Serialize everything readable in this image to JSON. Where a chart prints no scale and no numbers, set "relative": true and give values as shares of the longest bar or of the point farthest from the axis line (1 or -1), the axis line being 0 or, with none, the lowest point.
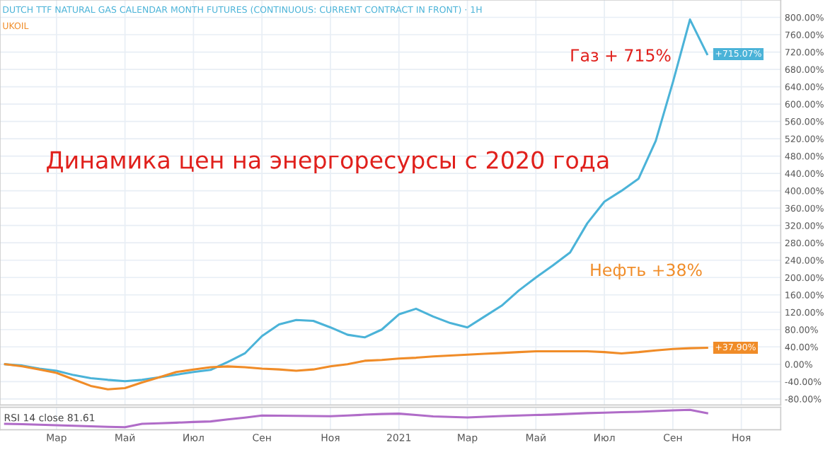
{
  "chart_data": [
    {
      "type": "line",
      "title": "Динамика цен на энергоресурсы с 2020 года",
      "annotations": [
        "Газ + 715%",
        "Нефть +38%"
      ],
      "categories": [
        null,
        null,
        null,
        null,
        null,
        null,
        null,
        null,
        null,
        null,
        null,
        null,
        null,
        null,
        null,
        null,
        null,
        null,
        null,
        null,
        null,
        null,
        null,
        null,
        null,
        null,
        null,
        null,
        null,
        null,
        null,
        null,
        null,
        null,
        null,
        null,
        null,
        null,
        null,
        null,
        null,
        null,
        null,
        null,
        null,
        null
      ],
      "series": [
        {
          "name": "DUTCH TTF NATURAL GAS CALENDAR MONTH FUTURES (CONTINUOUS: CURRENT CONTRACT IN FRONT) · 1H",
          "color": "#4bb3d8",
          "values": [
            0,
            -3,
            -10,
            -15,
            -25,
            -32,
            -36,
            -39,
            -36,
            -30,
            -24,
            -18,
            -13,
            5,
            25,
            65,
            92,
            102,
            100,
            85,
            68,
            62,
            80,
            115,
            128,
            110,
            95,
            85,
            110,
            135,
            170,
            200,
            228,
            258,
            325,
            375,
            400,
            428,
            515,
            650,
            795,
            715.07,
            null,
            null,
            null,
            null
          ],
          "value_labels": [
            null,
            null,
            null,
            null,
            null,
            null,
            null,
            null,
            null,
            null,
            null,
            null,
            null,
            null,
            null,
            null,
            null,
            null,
            null,
            null,
            null,
            null,
            null,
            null,
            null,
            null,
            null,
            null,
            null,
            null,
            null,
            null,
            null,
            null,
            null,
            null,
            null,
            null,
            null,
            null,
            null,
            "+715.07%",
            null,
            null,
            null,
            null
          ]
        },
        {
          "name": "UKOIL",
          "color": "#f08c28",
          "values": [
            0,
            -5,
            -12,
            -20,
            -35,
            -50,
            -58,
            -55,
            -42,
            -30,
            -18,
            -12,
            -7,
            -5,
            -7,
            -10,
            -12,
            -15,
            -12,
            -5,
            0,
            8,
            10,
            13,
            15,
            18,
            20,
            22,
            24,
            26,
            28,
            30,
            30,
            30,
            30,
            28,
            25,
            28,
            32,
            35,
            37,
            37.9,
            null,
            null,
            null,
            null
          ],
          "value_labels": [
            null,
            null,
            null,
            null,
            null,
            null,
            null,
            null,
            null,
            null,
            null,
            null,
            null,
            null,
            null,
            null,
            null,
            null,
            null,
            null,
            null,
            null,
            null,
            null,
            null,
            null,
            null,
            null,
            null,
            null,
            null,
            null,
            null,
            null,
            null,
            null,
            null,
            null,
            null,
            null,
            null,
            "+37.90%",
            null,
            null,
            null,
            null
          ]
        }
      ],
      "ylim": [
        -94,
        840
      ],
      "yticks": [
        {
          "value": -80,
          "label": "-80.00%"
        },
        {
          "value": -40,
          "label": "-40.00%"
        },
        {
          "value": 0,
          "label": "0.00%"
        },
        {
          "value": 40,
          "label": "40.00%"
        },
        {
          "value": 80,
          "label": "80.00%"
        },
        {
          "value": 120,
          "label": "120.00%"
        },
        {
          "value": 160,
          "label": "160.00%"
        },
        {
          "value": 200,
          "label": "200.00%"
        },
        {
          "value": 240,
          "label": "240.00%"
        },
        {
          "value": 280,
          "label": "280.00%"
        },
        {
          "value": 320,
          "label": "320.00%"
        },
        {
          "value": 360,
          "label": "360.00%"
        },
        {
          "value": 400,
          "label": "400.00%"
        },
        {
          "value": 440,
          "label": "440.00%"
        },
        {
          "value": 480,
          "label": "480.00%"
        },
        {
          "value": 520,
          "label": "520.00%"
        },
        {
          "value": 560,
          "label": "560.00%"
        },
        {
          "value": 600,
          "label": "600.00%"
        },
        {
          "value": 640,
          "label": "640.00%"
        },
        {
          "value": 680,
          "label": "680.00%"
        },
        {
          "value": 720,
          "label": "720.00%"
        },
        {
          "value": 760,
          "label": "760.00%"
        },
        {
          "value": 800,
          "label": "800.00%"
        }
      ],
      "grid": true,
      "tick_labels": "y",
      "line_style": "solid"
    },
    {
      "type": "line",
      "relative": true,
      "annotations": [
        "RSI 14 close 81.61"
      ],
      "categories": [
        null,
        null,
        null,
        "Мар",
        null,
        null,
        null,
        "Май",
        null,
        null,
        null,
        "Июл",
        null,
        null,
        null,
        "Сен",
        null,
        null,
        null,
        "Ноя",
        null,
        null,
        null,
        "2021",
        null,
        null,
        null,
        "Мар",
        null,
        null,
        null,
        "Май",
        null,
        null,
        null,
        "Июл",
        null,
        null,
        null,
        "Сен",
        null,
        null,
        null,
        "Ноя",
        null,
        null
      ],
      "series": [
        {
          "color": "#b06cc8",
          "values": [
            0.19,
            0.17,
            0.14,
            0.11,
            0.08,
            0.05,
            0.02,
            0,
            0.19,
            0.22,
            0.26,
            0.3,
            0.33,
            0.45,
            0.55,
            0.67,
            0.66,
            0.65,
            0.64,
            0.63,
            0.67,
            0.72,
            0.76,
            0.78,
            0.7,
            0.62,
            0.59,
            0.56,
            0.6,
            0.64,
            0.67,
            0.7,
            0.73,
            0.77,
            0.81,
            0.84,
            0.87,
            0.89,
            0.93,
            0.97,
            1,
            0.81,
            null,
            null,
            null,
            null
          ]
        }
      ],
      "grid": "x",
      "tick_labels": "x",
      "line_style": "solid"
    }
  ]
}
